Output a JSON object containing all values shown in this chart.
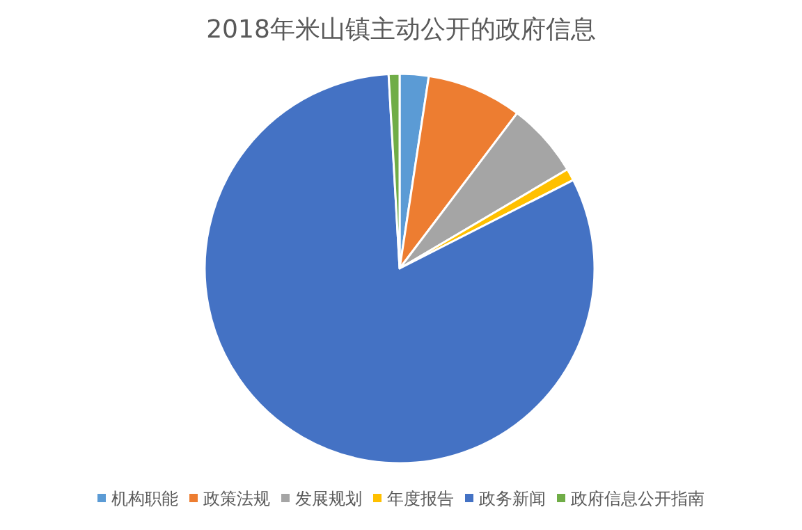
{
  "chart_data": {
    "type": "pie",
    "title": "2018年米山镇主动公开的政府信息",
    "categories": [
      "机构职能",
      "政策法规",
      "发展规划",
      "年度报告",
      "政务新闻",
      "政府信息公开指南"
    ],
    "values": [
      2.4,
      7.9,
      6.2,
      1.0,
      81.6,
      0.9
    ],
    "colors": [
      "#5b9bd5",
      "#ed7d31",
      "#a5a5a5",
      "#ffc000",
      "#4472c4",
      "#70ad47"
    ],
    "legend": "bottom"
  }
}
